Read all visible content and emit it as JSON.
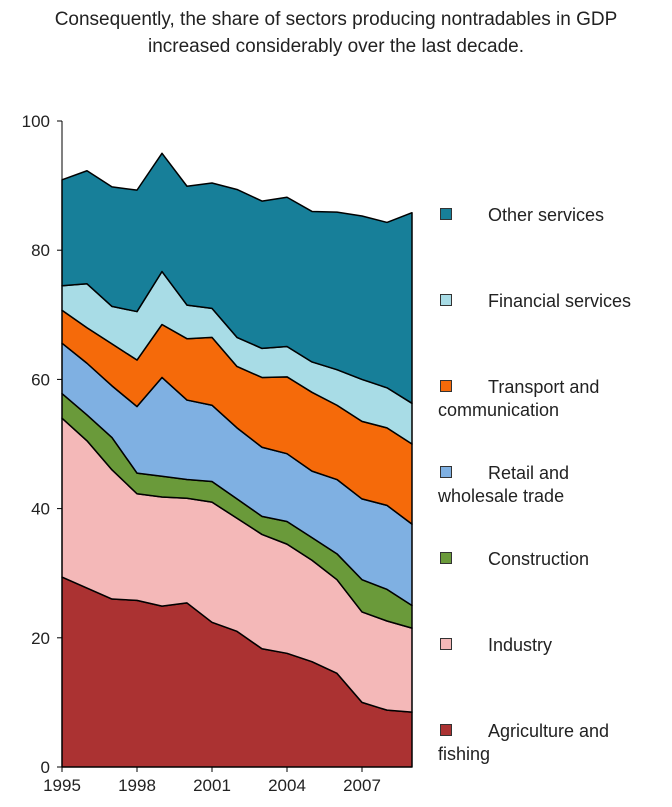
{
  "chart_data": {
    "type": "stacked_area",
    "title": "Consequently, the share of sectors producing nontradables in GDP increased considerably over the last decade.",
    "x": [
      1995,
      1996,
      1997,
      1998,
      1999,
      2000,
      2001,
      2002,
      2003,
      2004,
      2005,
      2006,
      2007,
      2008,
      2009
    ],
    "xlim": [
      1995,
      2009
    ],
    "xticks": [
      1995,
      1998,
      2001,
      2004,
      2007
    ],
    "ylim": [
      0,
      100
    ],
    "yticks": [
      0,
      20,
      40,
      60,
      80,
      100
    ],
    "series": [
      {
        "name": "Agriculture and fishing",
        "color": "#ab3232",
        "values": [
          29.4,
          27.7,
          26,
          25.8,
          24.9,
          25.4,
          22.4,
          21,
          18.3,
          17.6,
          16.3,
          14.5,
          10,
          8.8,
          8.5
        ]
      },
      {
        "name": "Industry",
        "color": "#f4b8b8",
        "values": [
          24.6,
          22.8,
          20,
          16.5,
          16.9,
          16.2,
          18.6,
          17.5,
          17.7,
          16.9,
          15.7,
          14.5,
          14,
          13.8,
          13
        ]
      },
      {
        "name": "Construction",
        "color": "#6a9a3a",
        "values": [
          3.8,
          4,
          5,
          3.2,
          3.2,
          2.9,
          3.2,
          3,
          2.8,
          3.5,
          3.5,
          4,
          5,
          4.9,
          3.5
        ]
      },
      {
        "name": "Retail and wholesale trade",
        "color": "#7fb0e2",
        "values": [
          7.8,
          8,
          8,
          10.3,
          15.3,
          12.3,
          11.8,
          11,
          10.7,
          10.5,
          10.3,
          11.5,
          12.5,
          13,
          12.6
        ]
      },
      {
        "name": "Transport and communication",
        "color": "#f56a0a",
        "values": [
          5.1,
          5.5,
          6.5,
          7.2,
          8.2,
          9.5,
          10.5,
          9.5,
          10.8,
          11.9,
          12.2,
          11.5,
          12,
          12,
          12.4
        ]
      },
      {
        "name": "Financial services",
        "color": "#a8dce6",
        "values": [
          3.8,
          6.8,
          5.8,
          7.5,
          8.2,
          5.2,
          4.5,
          4.5,
          4.5,
          4.7,
          4.7,
          5.5,
          6.5,
          6.2,
          6.3
        ]
      },
      {
        "name": "Other services",
        "color": "#177f99",
        "values": [
          16.4,
          17.5,
          18.5,
          18.8,
          18.3,
          18.4,
          19.4,
          22.9,
          22.8,
          23.1,
          23.3,
          24.4,
          25.3,
          25.6,
          29.5
        ]
      }
    ]
  }
}
